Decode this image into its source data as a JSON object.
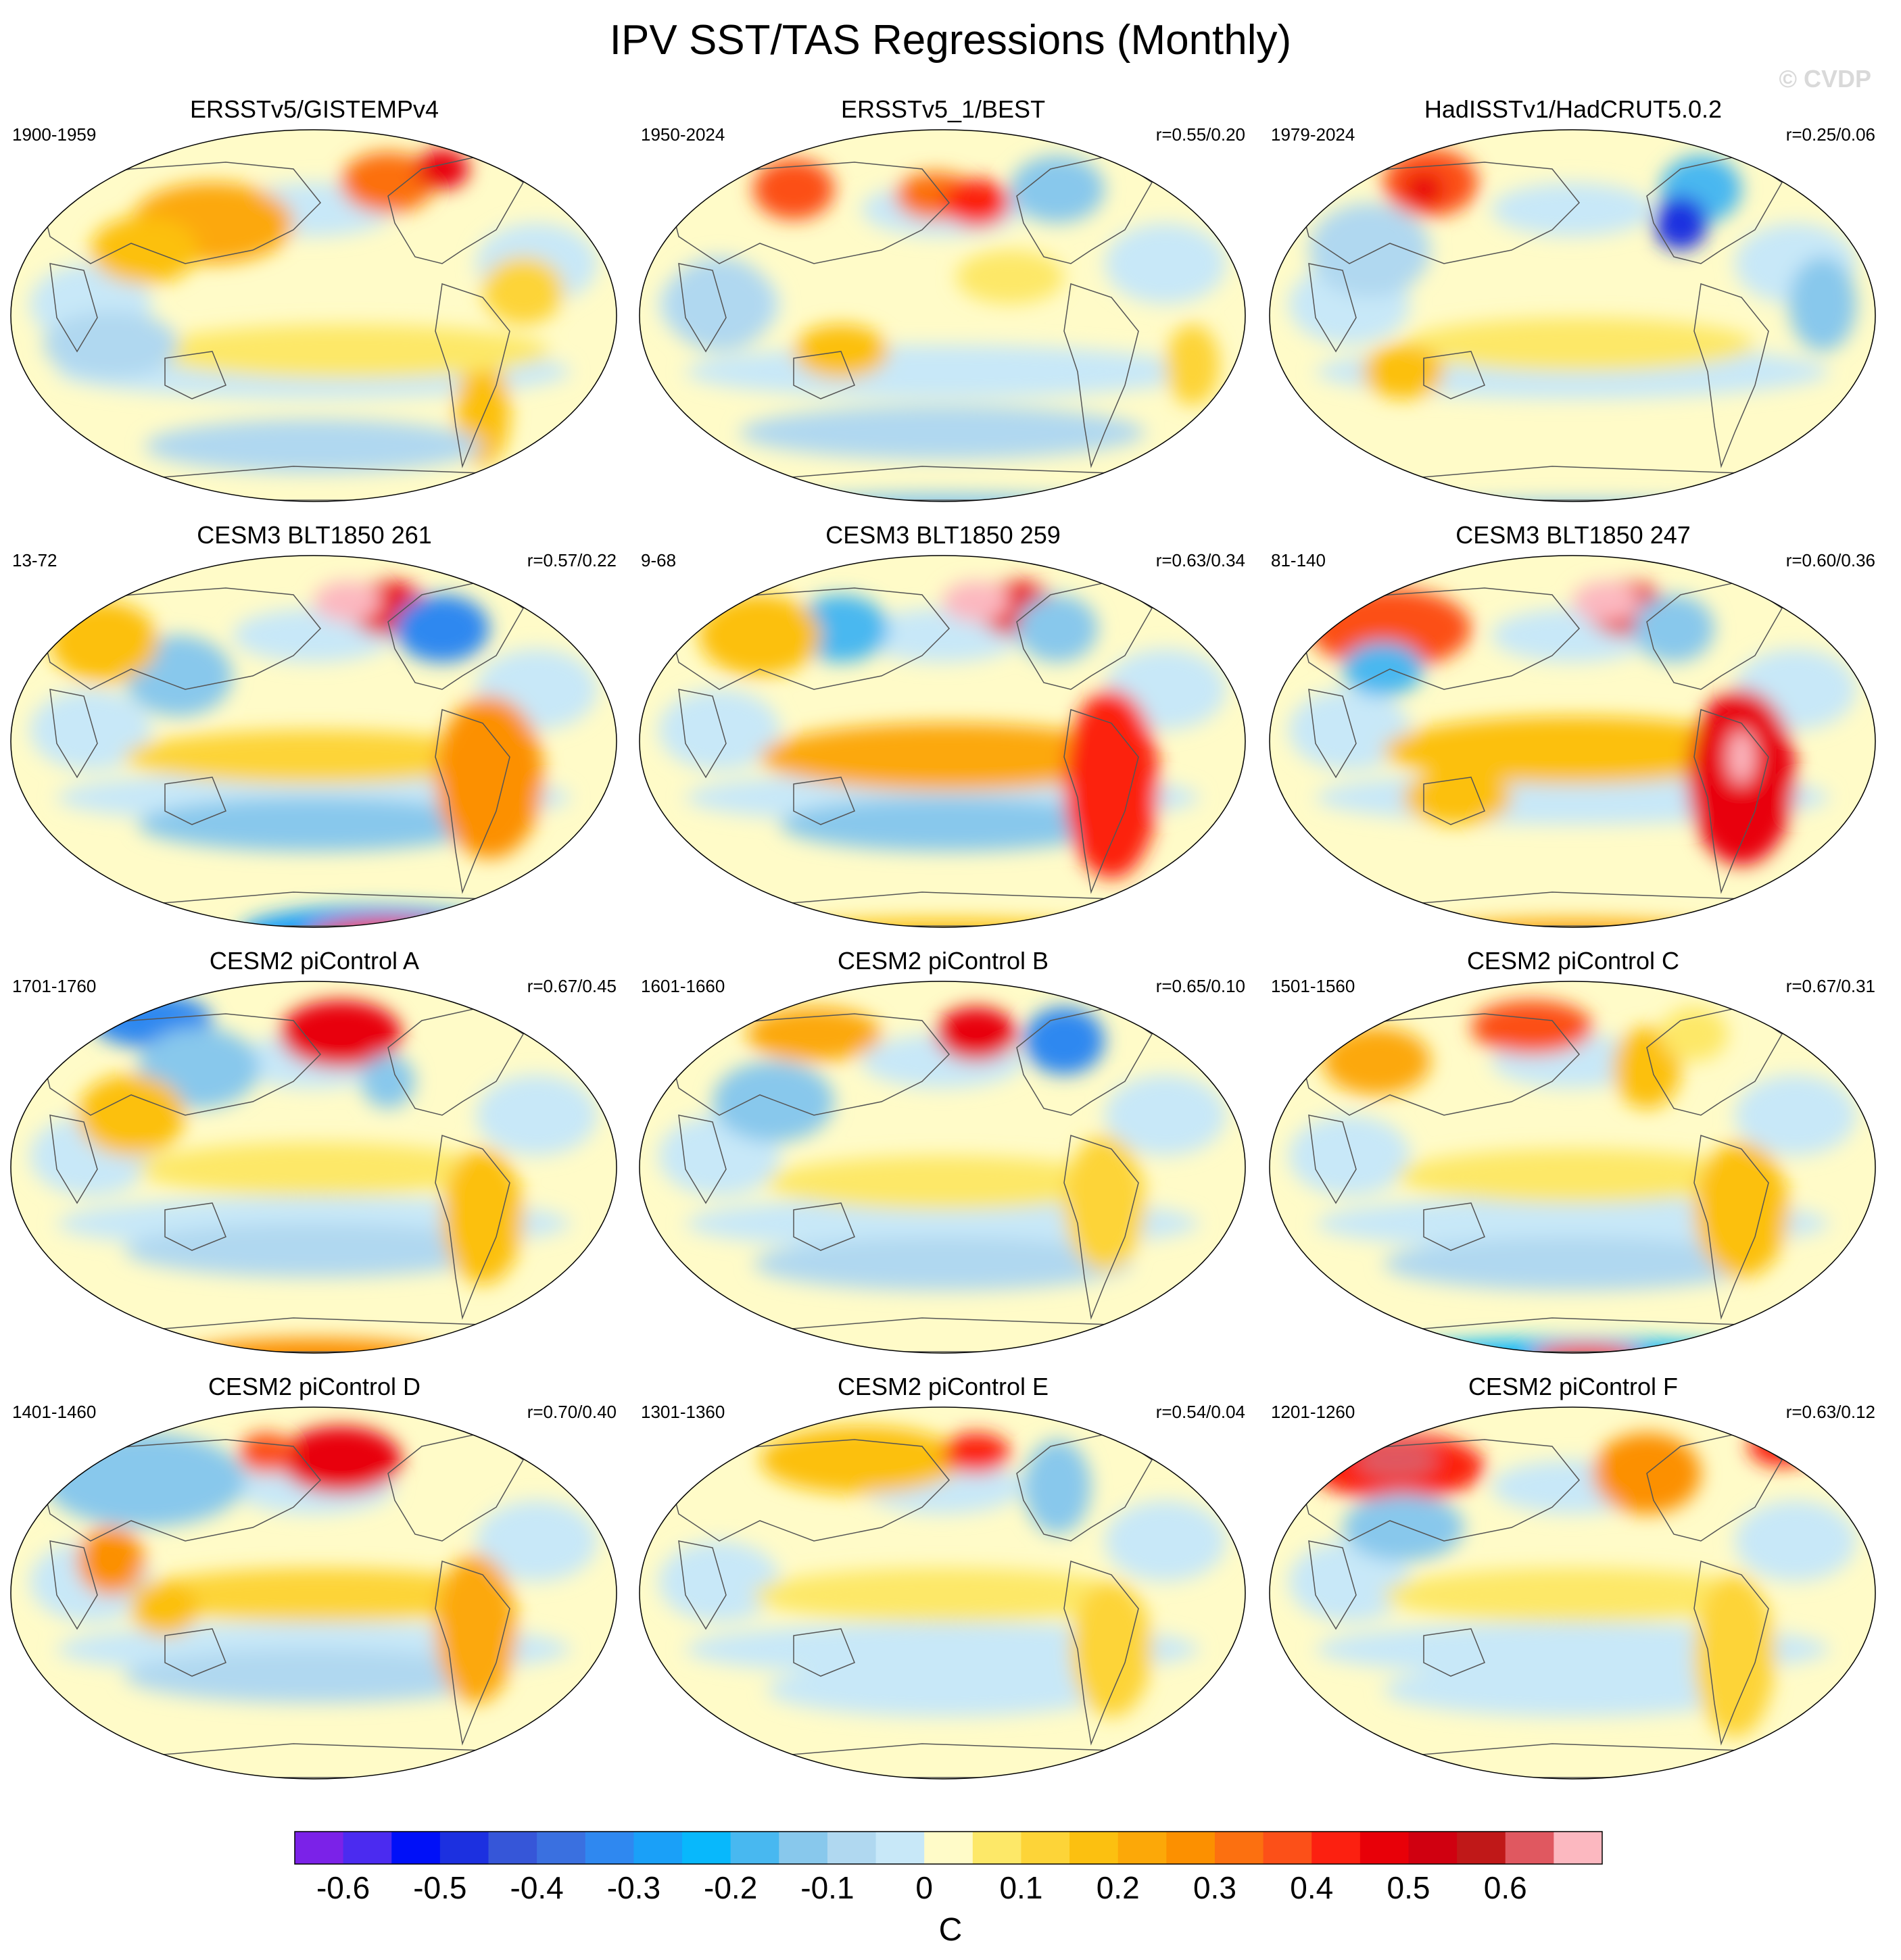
{
  "title": "IPV SST/TAS Regressions (Monthly)",
  "watermark": "© CVDP",
  "colors": {
    "land_outline": "#555555",
    "map_border": "#000000",
    "missing": "#ffffff"
  },
  "chart_data": {
    "type": "map-panels",
    "rows": 4,
    "cols": 3,
    "panels": [
      {
        "title": "ERSSTv5/GISTEMPv4",
        "left_label": "1900-1959",
        "right_label": "",
        "pattern": "obs1"
      },
      {
        "title": "ERSSTv5_1/BEST",
        "left_label": "1950-2024",
        "right_label": "r=0.55/0.20",
        "pattern": "obs2"
      },
      {
        "title": "HadISSTv1/HadCRUT5.0.2",
        "left_label": "1979-2024",
        "right_label": "r=0.25/0.06",
        "pattern": "obs3"
      },
      {
        "title": "CESM3 BLT1850 261",
        "left_label": "13-72",
        "right_label": "r=0.57/0.22",
        "pattern": "cesm3a"
      },
      {
        "title": "CESM3 BLT1850 259",
        "left_label": "9-68",
        "right_label": "r=0.63/0.34",
        "pattern": "cesm3b"
      },
      {
        "title": "CESM3 BLT1850 247",
        "left_label": "81-140",
        "right_label": "r=0.60/0.36",
        "pattern": "cesm3c"
      },
      {
        "title": "CESM2 piControl A",
        "left_label": "1701-1760",
        "right_label": "r=0.67/0.45",
        "pattern": "picA"
      },
      {
        "title": "CESM2 piControl B",
        "left_label": "1601-1660",
        "right_label": "r=0.65/0.10",
        "pattern": "picB"
      },
      {
        "title": "CESM2 piControl C",
        "left_label": "1501-1560",
        "right_label": "r=0.67/0.31",
        "pattern": "picC"
      },
      {
        "title": "CESM2 piControl D",
        "left_label": "1401-1460",
        "right_label": "r=0.70/0.40",
        "pattern": "picD"
      },
      {
        "title": "CESM2 piControl E",
        "left_label": "1301-1360",
        "right_label": "r=0.54/0.04",
        "pattern": "picE"
      },
      {
        "title": "CESM2 piControl F",
        "left_label": "1201-1260",
        "right_label": "r=0.63/0.12",
        "pattern": "picF"
      }
    ],
    "colorbar": {
      "colors": [
        "#7b22e8",
        "#4b2bf0",
        "#0010f8",
        "#1c30e0",
        "#3656d8",
        "#3a70e0",
        "#2f88f0",
        "#1aa0f8",
        "#08b8fc",
        "#48b8f0",
        "#88c8ec",
        "#b0d8f0",
        "#c8e8f8",
        "#fffbc8",
        "#fde868",
        "#fdd438",
        "#fcc010",
        "#fca808",
        "#fc9000",
        "#fc7010",
        "#fc5018",
        "#fc2010",
        "#e80008",
        "#d00010",
        "#c01818",
        "#e05860",
        "#fcb8c0"
      ],
      "tick_labels": [
        "-0.6",
        "-0.5",
        "-0.4",
        "-0.3",
        "-0.2",
        "-0.1",
        "0",
        "0.1",
        "0.2",
        "0.3",
        "0.4",
        "0.5",
        "0.6"
      ],
      "tick_values": [
        -0.6,
        -0.5,
        -0.4,
        -0.3,
        -0.2,
        -0.1,
        0,
        0.1,
        0.2,
        0.3,
        0.4,
        0.5,
        0.6
      ],
      "unit": "C"
    }
  }
}
